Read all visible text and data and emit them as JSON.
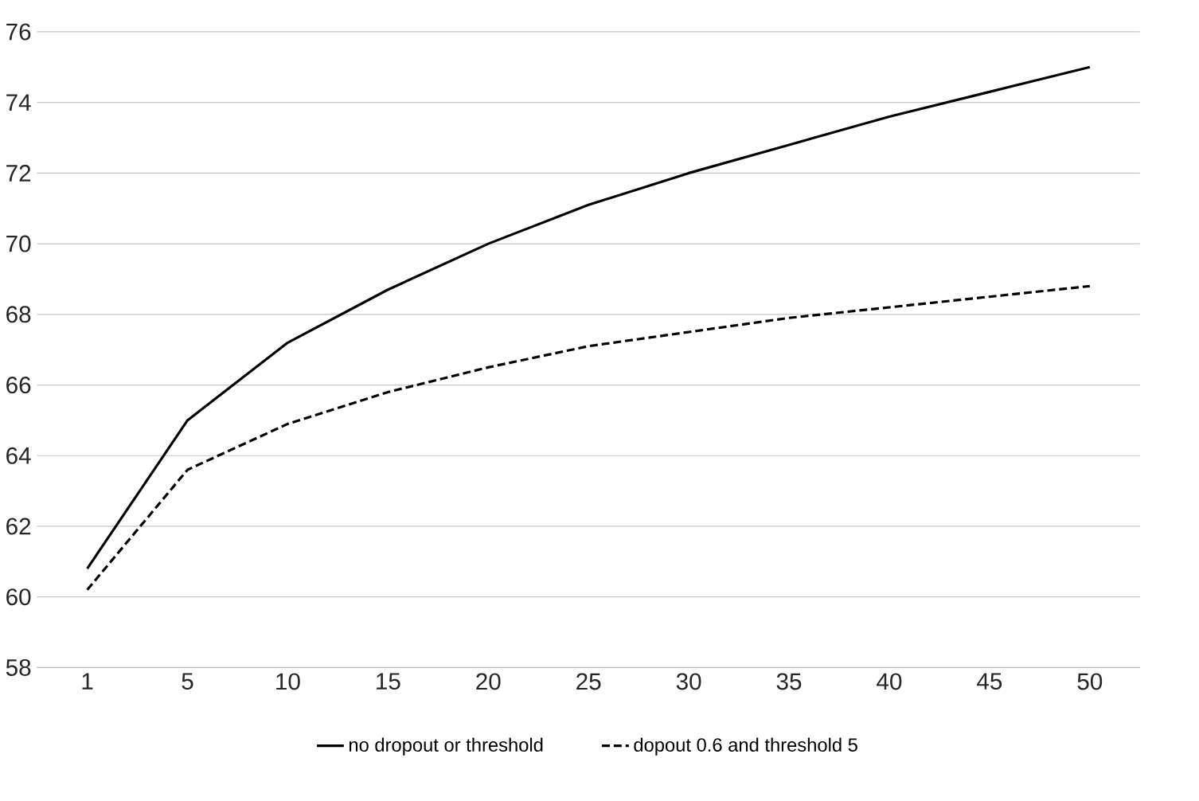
{
  "chart_data": {
    "type": "line",
    "categories": [
      "1",
      "5",
      "10",
      "15",
      "20",
      "25",
      "30",
      "35",
      "40",
      "45",
      "50"
    ],
    "series": [
      {
        "name": "no dropout or threshold",
        "color": "#000000",
        "line_style": "solid",
        "values": [
          60.8,
          65.0,
          67.2,
          68.7,
          70.0,
          71.1,
          72.0,
          72.8,
          73.6,
          74.3,
          75.0
        ]
      },
      {
        "name": "dopout 0.6 and threshold 5",
        "color": "#000000",
        "line_style": "dashed",
        "values": [
          60.2,
          63.6,
          64.9,
          65.8,
          66.5,
          67.1,
          67.5,
          67.9,
          68.2,
          68.5,
          68.8
        ]
      }
    ],
    "ylim": [
      58,
      76
    ],
    "yticks": [
      58,
      60,
      62,
      64,
      66,
      68,
      70,
      72,
      74,
      76
    ],
    "grid": "y",
    "legend": "bottom",
    "marker": "none"
  }
}
